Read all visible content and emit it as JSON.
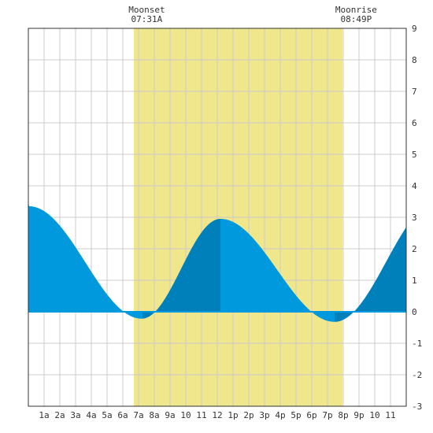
{
  "chart_data": {
    "type": "area",
    "title": "",
    "xlabel": "",
    "ylabel": "",
    "xlim": [
      0,
      24
    ],
    "ylim": [
      -3,
      9
    ],
    "grid": true,
    "x_tick_labels": [
      "1a",
      "2a",
      "3a",
      "4a",
      "5a",
      "6a",
      "7a",
      "8a",
      "9a",
      "10",
      "11",
      "12",
      "1p",
      "2p",
      "3p",
      "4p",
      "5p",
      "6p",
      "7p",
      "8p",
      "9p",
      "10",
      "11"
    ],
    "y_tick_labels": [
      "9",
      "8",
      "7",
      "6",
      "5",
      "4",
      "3",
      "2",
      "1",
      "0",
      "-1",
      "-2",
      "-3"
    ],
    "daylight_band": {
      "start_hour": 6.7,
      "end_hour": 19.95
    },
    "annotations": [
      {
        "label": "Moonset",
        "time": "07:31A",
        "hour": 7.52
      },
      {
        "label": "Moonrise",
        "time": "08:49P",
        "hour": 20.82
      }
    ],
    "extrema": [
      {
        "hour": 0.05,
        "height": 3.35,
        "type": "high"
      },
      {
        "hour": 7.2,
        "height": -0.22,
        "type": "low"
      },
      {
        "hour": 12.2,
        "height": 2.95,
        "type": "high"
      },
      {
        "hour": 19.45,
        "height": -0.32,
        "type": "low"
      },
      {
        "hour": 26.0,
        "height": 3.5,
        "type": "high"
      }
    ],
    "series": [
      {
        "values_hour": [
          0,
          1,
          2,
          3,
          4,
          5,
          6,
          6.5,
          7,
          7.5,
          8,
          9,
          10,
          11,
          12,
          13,
          14,
          15,
          16,
          17,
          18,
          18.5,
          19,
          19.5,
          20,
          21,
          22,
          23,
          24
        ],
        "values_height": [
          3.35,
          3.1,
          2.4,
          1.6,
          0.85,
          0.3,
          -0.02,
          -0.15,
          -0.22,
          -0.2,
          0.05,
          0.75,
          1.6,
          2.4,
          2.95,
          2.8,
          2.3,
          1.6,
          0.9,
          0.35,
          -0.05,
          -0.2,
          -0.3,
          -0.32,
          -0.2,
          0.45,
          1.4,
          2.4,
          3.2
        ]
      }
    ],
    "colors": {
      "tide": "#0099dd",
      "tide_rising": "#0080bb",
      "daylight": "#f0e68c",
      "grid": "#cccccc",
      "zero_line": "#0099dd"
    }
  }
}
